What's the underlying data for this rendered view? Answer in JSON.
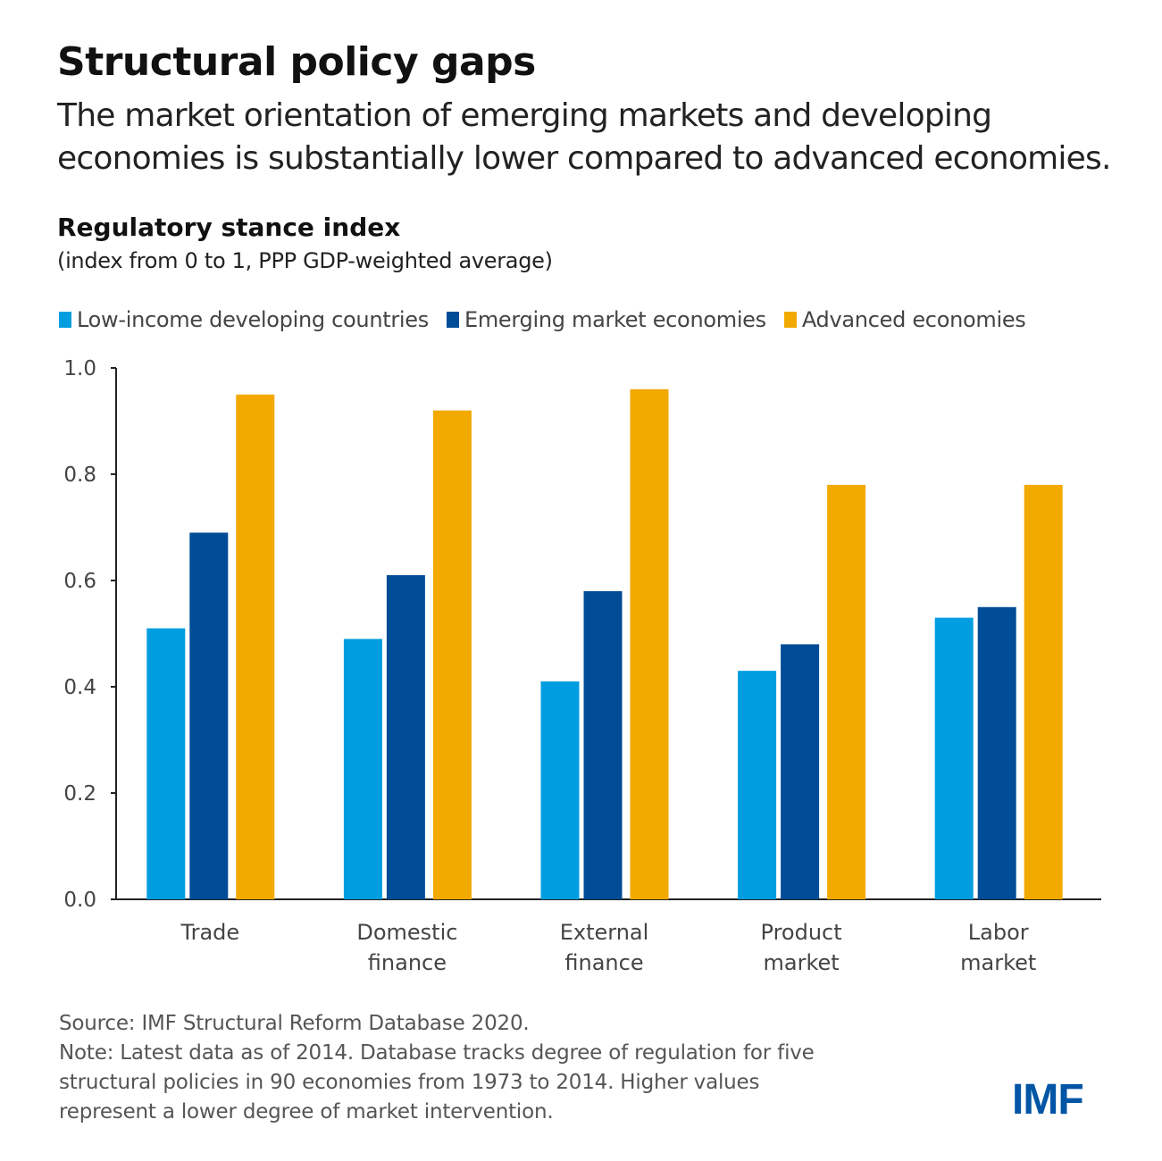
{
  "header": {
    "title": "Structural policy gaps",
    "subtitle": "The market orientation of emerging markets and developing economies is substantially lower compared to advanced economies."
  },
  "chart_data": {
    "type": "bar",
    "title": "Regulatory stance index",
    "subtitle": "(index from 0 to 1, PPP GDP-weighted average)",
    "categories": [
      [
        "Trade"
      ],
      [
        "Domestic",
        "finance"
      ],
      [
        "External",
        "finance"
      ],
      [
        "Product",
        "market"
      ],
      [
        "Labor",
        "market"
      ]
    ],
    "series": [
      {
        "name": "Low-income developing countries",
        "color": "#009ee0",
        "values": [
          0.51,
          0.49,
          0.41,
          0.43,
          0.53
        ]
      },
      {
        "name": "Emerging market economies",
        "color": "#004c97",
        "values": [
          0.69,
          0.61,
          0.58,
          0.48,
          0.55
        ]
      },
      {
        "name": "Advanced economies",
        "color": "#f2a900",
        "values": [
          0.95,
          0.92,
          0.96,
          0.78,
          0.78
        ]
      }
    ],
    "ylim": [
      0,
      1
    ],
    "yticks": [
      "0.0",
      "0.2",
      "0.4",
      "0.6",
      "0.8",
      "1.0"
    ],
    "grid": false,
    "legend": "top"
  },
  "footer": {
    "source": "Source: IMF Structural Reform Database 2020.",
    "note": "Note: Latest data as of 2014. Database tracks degree of regulation for five structural policies in 90 economies from 1973 to 2014. Higher values represent a lower degree of market intervention.",
    "logo": "IMF"
  }
}
